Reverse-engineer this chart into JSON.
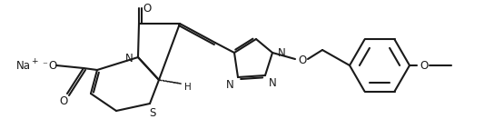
{
  "bg": "#ffffff",
  "lc": "#1a1a1a",
  "lw": 1.5,
  "fs": [
    5.55,
    1.53
  ],
  "dpi": 100,
  "xlim": [
    0,
    555
  ],
  "ylim": [
    0,
    153
  ]
}
